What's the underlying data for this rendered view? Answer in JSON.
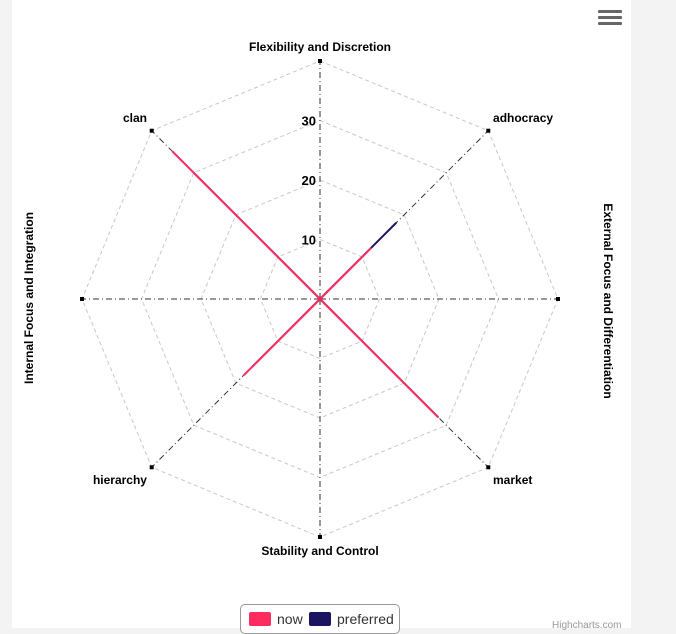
{
  "chart_data": {
    "type": "radar",
    "categories": [
      "Flexibility and Discretion",
      "adhocracy",
      "",
      "market",
      "Stability and Control",
      "hierarchy",
      "",
      "clan"
    ],
    "series": [
      {
        "name": "now",
        "color": "#ff2c5f",
        "values": [
          0,
          12,
          0,
          28,
          0,
          18,
          0,
          35
        ]
      },
      {
        "name": "preferred",
        "color": "#1a1461",
        "values": [
          0,
          18,
          0,
          28,
          0,
          16,
          0,
          30
        ]
      }
    ],
    "ytick_labels": [
      "10",
      "20",
      "30"
    ],
    "ytick_values": [
      10,
      20,
      30
    ],
    "ymax": 40,
    "left_axis_title": "Internal Focus and Integration",
    "right_axis_title": "External Focus and Differentiation",
    "legend": "bottom-center"
  },
  "credits": "Highcharts.com",
  "menu_icon": "hamburger-menu-icon"
}
